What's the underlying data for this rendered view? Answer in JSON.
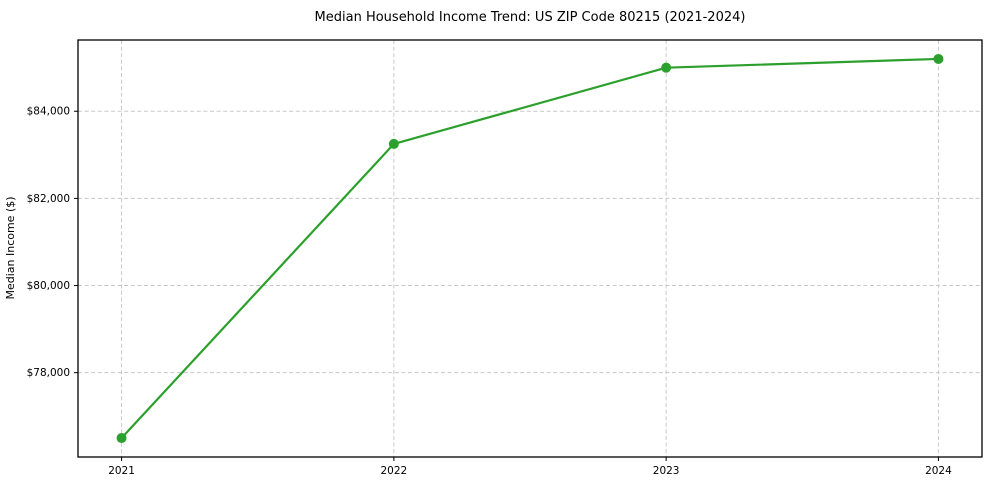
{
  "chart_data": {
    "type": "line",
    "title": "Median Household Income Trend: US ZIP Code 80215 (2021-2024)",
    "xlabel": "",
    "ylabel": "Median Income ($)",
    "categories": [
      "2021",
      "2022",
      "2023",
      "2024"
    ],
    "x": [
      2021,
      2022,
      2023,
      2024
    ],
    "series": [
      {
        "name": "Median Household Income",
        "values": [
          76500,
          83250,
          85000,
          85200
        ]
      }
    ],
    "y_ticks": [
      {
        "value": 78000,
        "label": "$78,000"
      },
      {
        "value": 80000,
        "label": "$80,000"
      },
      {
        "value": 82000,
        "label": "$82,000"
      },
      {
        "value": 84000,
        "label": "$84,000"
      }
    ],
    "xlim": [
      2020.84,
      2024.16
    ],
    "ylim": [
      76065,
      85635
    ],
    "grid": true,
    "grid_style": "dashed",
    "legend": "none",
    "line_color": "#2ca02c",
    "marker_color": "#2ca02c",
    "grid_color": "#c8c8c8",
    "spine_color": "#000000",
    "background": "#ffffff"
  }
}
